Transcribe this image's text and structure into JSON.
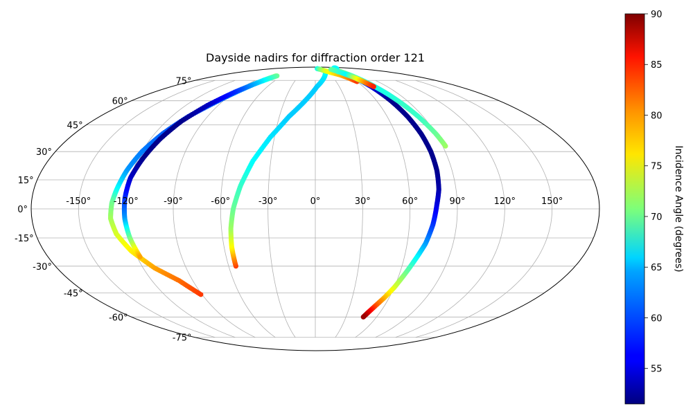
{
  "chart_data": {
    "type": "scatter",
    "projection": "mollweide",
    "title": "Dayside nadirs for diffraction order 121",
    "grid": true,
    "longitude_ticks": [
      "-150°",
      "-120°",
      "-90°",
      "-60°",
      "-30°",
      "0°",
      "30°",
      "60°",
      "90°",
      "120°",
      "150°"
    ],
    "longitude_tick_values": [
      -150,
      -120,
      -90,
      -60,
      -30,
      0,
      30,
      60,
      90,
      120,
      150
    ],
    "latitude_ticks": [
      "75°",
      "60°",
      "45°",
      "30°",
      "15°",
      "0°",
      "-15°",
      "-30°",
      "-45°",
      "-60°",
      "-75°"
    ],
    "latitude_tick_values": [
      75,
      60,
      45,
      30,
      15,
      0,
      -15,
      -30,
      -45,
      -60,
      -75
    ],
    "colorbar": {
      "label": "Incidence Angle (degrees)",
      "range": [
        51.5,
        90
      ],
      "ticks": [
        55,
        60,
        65,
        70,
        75,
        80,
        85,
        90
      ],
      "tick_labels": [
        "55",
        "60",
        "65",
        "70",
        "75",
        "80",
        "85",
        "90"
      ],
      "colormap": "jet"
    },
    "series": [
      {
        "lon": [
          -72,
          -78,
          -86,
          -96,
          -106,
          -114,
          -120,
          -124,
          -127,
          -129,
          -130,
          -128,
          -122,
          -112,
          -100,
          -91
        ],
        "lat": [
          79,
          75,
          68,
          59,
          50,
          40,
          30,
          20,
          10,
          3,
          -5,
          -13,
          -22,
          -31,
          -38,
          -46
        ],
        "incidence": [
          72,
          66,
          62,
          60,
          59,
          60,
          61,
          62,
          66,
          70,
          72,
          74,
          76,
          79,
          81,
          83
        ]
      },
      {
        "lon": [
          -70,
          -80,
          -90,
          -100,
          -108,
          -113,
          -117,
          -120,
          -121,
          -121,
          -120,
          -118
        ],
        "lat": [
          79,
          73,
          66,
          57,
          47,
          37,
          26,
          16,
          5,
          -5,
          -15,
          -25
        ],
        "incidence": [
          70,
          64,
          58,
          54,
          52,
          52,
          52,
          54,
          58,
          62,
          70,
          79
        ]
      },
      {
        "lon": [
          -55,
          -55,
          -54,
          -52,
          -48,
          -42,
          -33,
          -22,
          -10,
          2,
          14,
          26
        ],
        "lat": [
          -30,
          -20,
          -10,
          0,
          12,
          25,
          38,
          50,
          60,
          70,
          77,
          84
        ],
        "incidence": [
          83,
          76,
          72,
          70,
          68,
          66,
          65,
          64,
          64,
          64,
          65,
          66
        ]
      },
      {
        "lon": [
          8,
          18,
          28,
          38,
          48,
          55,
          60
        ],
        "lat": [
          87,
          86,
          84,
          82,
          80,
          77,
          74
        ],
        "incidence": [
          66,
          70,
          74,
          76,
          78,
          80,
          83
        ]
      },
      {
        "lon": [
          60,
          65,
          70,
          74,
          77,
          79,
          80,
          80,
          79,
          77,
          75,
          72,
          68,
          64,
          60,
          56,
          52,
          49,
          47
        ],
        "lat": [
          83,
          78,
          70,
          60,
          50,
          40,
          30,
          20,
          10,
          2,
          -8,
          -18,
          -26,
          -34,
          -42,
          -48,
          -53,
          -57,
          -60
        ],
        "incidence": [
          82,
          68,
          55,
          52,
          52,
          52,
          52,
          52,
          53,
          55,
          58,
          62,
          66,
          70,
          74,
          78,
          82,
          86,
          89
        ]
      },
      {
        "lon": [
          92,
          90,
          86,
          82,
          78,
          73,
          68,
          64,
          62
        ],
        "lat": [
          33,
          40,
          50,
          58,
          65,
          72,
          78,
          83,
          86
        ],
        "incidence": [
          72,
          70,
          68,
          68,
          67,
          67,
          68,
          70,
          72
        ]
      },
      {
        "lon": [
          56,
          62,
          70,
          80,
          92,
          104,
          114
        ],
        "lat": [
          83,
          85,
          86,
          87,
          87,
          88,
          88
        ],
        "incidence": [
          68,
          66,
          66,
          66,
          66,
          66,
          66
        ]
      },
      {
        "lon": [
          55,
          58,
          62,
          66,
          70,
          73
        ],
        "lat": [
          86,
          83,
          80,
          77,
          73,
          70
        ],
        "incidence": [
          70,
          68,
          66,
          74,
          80,
          84
        ]
      }
    ]
  }
}
